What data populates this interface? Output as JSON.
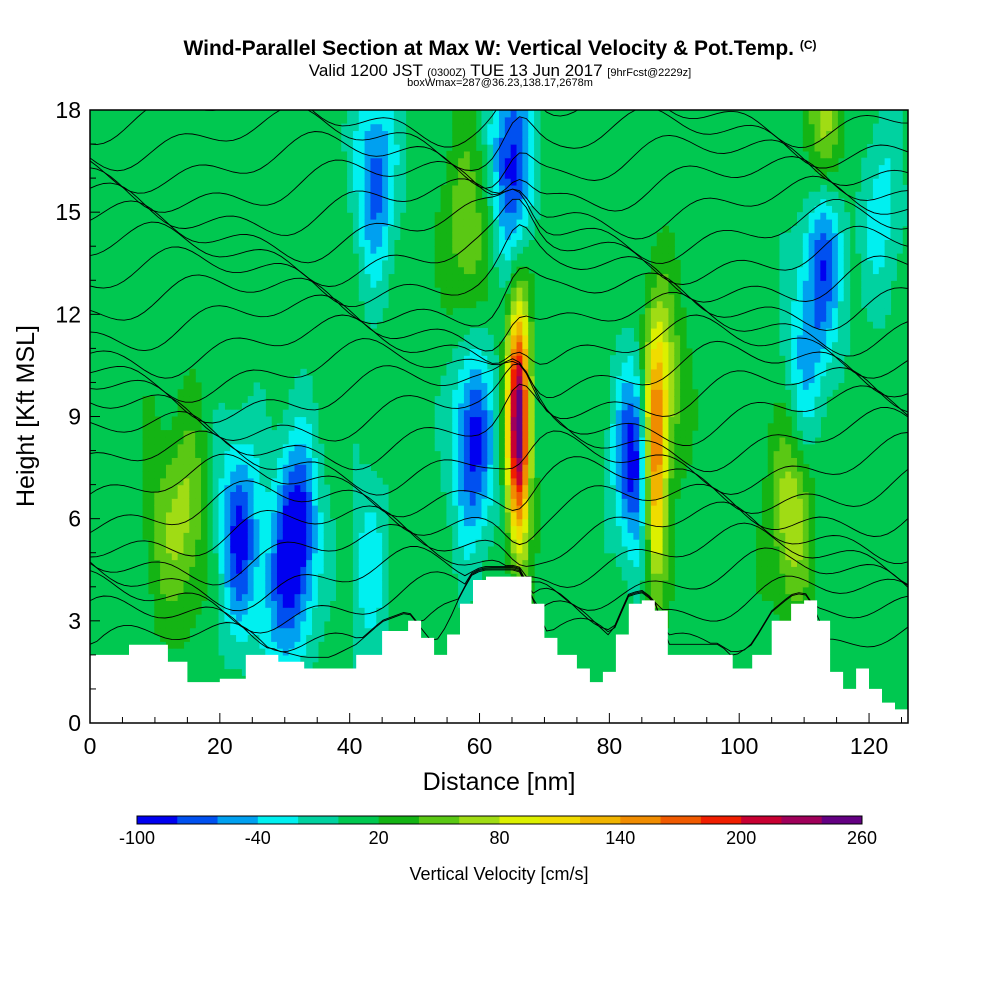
{
  "header": {
    "title": "Wind-Parallel Section at Max W: Vertical Velocity & Pot.Temp.",
    "copyright": "(C)",
    "valid_prefix": "Valid 1200 JST",
    "valid_utc": "(0300Z)",
    "valid_suffix": "TUE 13 Jun 2017",
    "forecast": "[9hrFcst@2229z]",
    "box_info": "boxWmax=287@36.23,138.17,2678m"
  },
  "colors": {
    "terrain": "#ffffff",
    "background": "#ffffff",
    "contour": "#000000"
  },
  "chart_data": {
    "type": "heatmap",
    "xlabel": "Distance [nm]",
    "ylabel": "Height [Kft MSL]",
    "xlim": [
      0,
      126
    ],
    "ylim": [
      0,
      18
    ],
    "x_ticks": [
      "0",
      "20",
      "40",
      "60",
      "80",
      "100",
      "120"
    ],
    "y_ticks": [
      "0",
      "3",
      "6",
      "9",
      "12",
      "15",
      "18"
    ],
    "colorbar": {
      "label": "Vertical Velocity [cm/s]",
      "tick_labels": [
        "-100",
        "-40",
        "20",
        "80",
        "140",
        "200",
        "260"
      ],
      "levels": [
        -100,
        -80,
        -60,
        -40,
        -20,
        0,
        20,
        40,
        60,
        80,
        100,
        120,
        140,
        160,
        180,
        200,
        220,
        240,
        260
      ],
      "colors": [
        "#0000f0",
        "#0050f0",
        "#00a0f0",
        "#00f0f0",
        "#00d2a0",
        "#00c850",
        "#14b414",
        "#5ac814",
        "#a0dc14",
        "#dcf000",
        "#f0dc00",
        "#f0b400",
        "#f08c00",
        "#f05a00",
        "#f01e00",
        "#c80032",
        "#a0005a",
        "#640082"
      ]
    },
    "updraft_maximum": {
      "value": 287,
      "unit": "cm/s",
      "x_nm": 66,
      "height_kft": 8.8
    },
    "terrain_profile": {
      "x": [
        0,
        6,
        12,
        15,
        20,
        24,
        29,
        33,
        37,
        41,
        45,
        49,
        51,
        53,
        55,
        57,
        59,
        61,
        64,
        66,
        68,
        70,
        72,
        75,
        77,
        79,
        81,
        83,
        85,
        87,
        89,
        91,
        94,
        97,
        99,
        102,
        105,
        108,
        110,
        112,
        114,
        116,
        118,
        120,
        122,
        124,
        126
      ],
      "h": [
        2.0,
        2.3,
        1.8,
        1.2,
        1.3,
        2.0,
        1.8,
        1.6,
        1.6,
        2.0,
        2.7,
        3.0,
        2.5,
        2.0,
        2.6,
        3.5,
        4.2,
        4.3,
        4.3,
        4.3,
        3.5,
        2.5,
        2.0,
        1.6,
        1.2,
        1.5,
        2.6,
        3.5,
        3.6,
        3.3,
        2.0,
        2.0,
        2.0,
        2.0,
        1.6,
        2.0,
        3.0,
        3.5,
        3.6,
        3.0,
        1.5,
        1.0,
        1.6,
        1.0,
        0.6,
        0.4,
        0.4
      ]
    },
    "vertical_velocity_features": [
      {
        "x_nm": 11,
        "height_kft": 5.7,
        "w": 40
      },
      {
        "x_nm": 15,
        "height_kft": 6.1,
        "w": 60
      },
      {
        "x_nm": 23,
        "height_kft": 5.5,
        "w": -85
      },
      {
        "x_nm": 32,
        "height_kft": 5.6,
        "w": -100
      },
      {
        "x_nm": 29,
        "height_kft": 3.5,
        "w": -40
      },
      {
        "x_nm": 43,
        "height_kft": 4.5,
        "w": -30
      },
      {
        "x_nm": 59,
        "height_kft": 8.2,
        "w": -90
      },
      {
        "x_nm": 58,
        "height_kft": 14.5,
        "w": 60
      },
      {
        "x_nm": 66,
        "height_kft": 8.8,
        "w": 260
      },
      {
        "x_nm": 65,
        "height_kft": 16.5,
        "w": -90
      },
      {
        "x_nm": 84,
        "height_kft": 7.8,
        "w": -100
      },
      {
        "x_nm": 87,
        "height_kft": 7.5,
        "w": 160
      },
      {
        "x_nm": 88,
        "height_kft": 10.0,
        "w": 80
      },
      {
        "x_nm": 108,
        "height_kft": 6.2,
        "w": 80
      },
      {
        "x_nm": 110,
        "height_kft": 10.5,
        "w": -40
      },
      {
        "x_nm": 113,
        "height_kft": 14.0,
        "w": -85
      },
      {
        "x_nm": 113,
        "height_kft": 17.0,
        "w": 80
      },
      {
        "x_nm": 44,
        "height_kft": 16.0,
        "w": -70
      },
      {
        "x_nm": 122,
        "height_kft": 15.0,
        "w": -30
      }
    ]
  },
  "legend": {
    "title": "Vertical Velocity [cm/s]"
  }
}
